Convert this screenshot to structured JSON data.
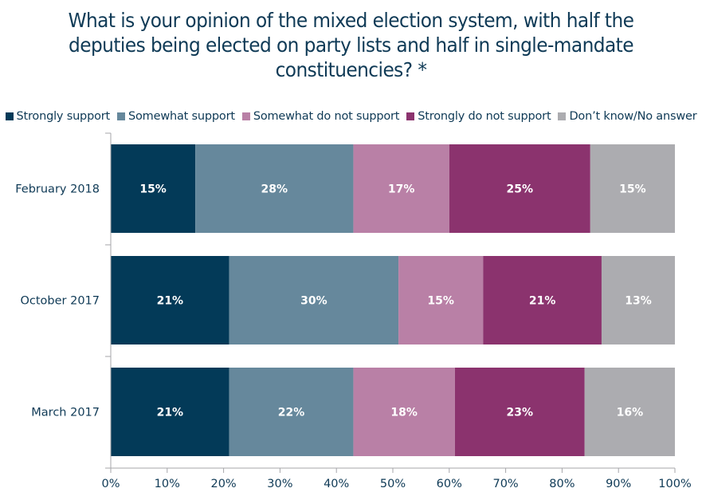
{
  "chart_data": {
    "type": "bar",
    "orientation": "horizontal",
    "stacked": true,
    "title": "What is your opinion of the mixed election system, with half the deputies being elected on party lists and half in single-mandate constituencies? *",
    "title_lines": [
      "What is your opinion of the mixed election system, with half the",
      "deputies being elected on party lists and half in single-mandate",
      "constituencies? *"
    ],
    "xlabel": "",
    "ylabel": "",
    "xlim": [
      0,
      100
    ],
    "x_ticks": [
      0,
      10,
      20,
      30,
      40,
      50,
      60,
      70,
      80,
      90,
      100
    ],
    "x_tick_labels": [
      "0%",
      "10%",
      "20%",
      "30%",
      "40%",
      "50%",
      "60%",
      "70%",
      "80%",
      "90%",
      "100%"
    ],
    "grid": false,
    "legend_position": "top",
    "categories": [
      "February 2018",
      "October 2017",
      "March 2017"
    ],
    "series": [
      {
        "name": "Strongly support",
        "color": "#033a58",
        "values": [
          15,
          21,
          21
        ],
        "labels": [
          "15%",
          "21%",
          "21%"
        ]
      },
      {
        "name": "Somewhat support",
        "color": "#66889c",
        "values": [
          28,
          30,
          22
        ],
        "labels": [
          "28%",
          "30%",
          "22%"
        ]
      },
      {
        "name": "Somewhat do not support",
        "color": "#b980a6",
        "values": [
          17,
          15,
          18
        ],
        "labels": [
          "17%",
          "15%",
          "18%"
        ]
      },
      {
        "name": "Strongly do not support",
        "color": "#8b336e",
        "values": [
          25,
          21,
          23
        ],
        "labels": [
          "25%",
          "21%",
          "23%"
        ]
      },
      {
        "name": "Don’t know/No answer",
        "color": "#acacb0",
        "values": [
          15,
          13,
          16
        ],
        "labels": [
          "15%",
          "13%",
          "16%"
        ]
      }
    ]
  }
}
